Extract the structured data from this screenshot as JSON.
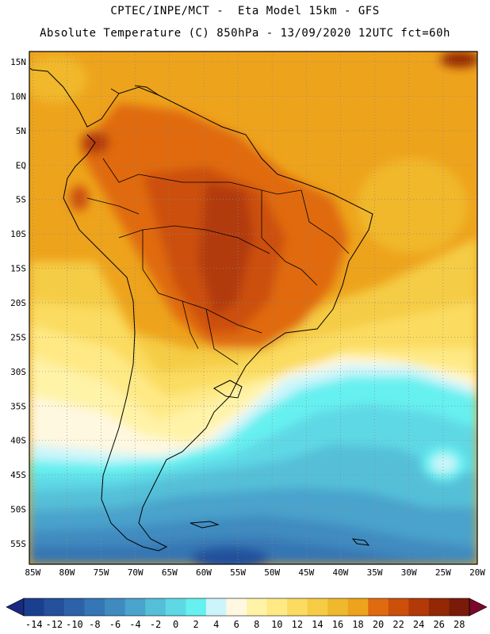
{
  "header": {
    "line1": "CPTEC/INPE/MCT -  Eta Model 15km - GFS",
    "line2": "Absolute Temperature (C) 850hPa - 13/09/2020 12UTC fct=60h"
  },
  "map": {
    "lat_labels": [
      "15N",
      "10N",
      "5N",
      "EQ",
      "5S",
      "10S",
      "15S",
      "20S",
      "25S",
      "30S",
      "35S",
      "40S",
      "45S",
      "50S",
      "55S"
    ],
    "lon_labels": [
      "85W",
      "80W",
      "75W",
      "70W",
      "65W",
      "60W",
      "55W",
      "50W",
      "45W",
      "40W",
      "35W",
      "30W",
      "25W",
      "20W"
    ],
    "lat_values": [
      15,
      10,
      5,
      0,
      -5,
      -10,
      -15,
      -20,
      -25,
      -30,
      -35,
      -40,
      -45,
      -50,
      -55
    ],
    "lon_values": [
      -85,
      -80,
      -75,
      -70,
      -65,
      -60,
      -55,
      -50,
      -45,
      -40,
      -35,
      -30,
      -25,
      -20
    ],
    "lat_range": [
      -58,
      16.5
    ],
    "lon_range": [
      -85.5,
      -20
    ],
    "grid": "dotted"
  },
  "colorbar": {
    "labels": [
      "-14",
      "-12",
      "-10",
      "-8",
      "-6",
      "-4",
      "-2",
      "0",
      "2",
      "4",
      "6",
      "8",
      "10",
      "12",
      "14",
      "16",
      "18",
      "20",
      "22",
      "24",
      "26",
      "28"
    ],
    "colors": [
      "#1b3f8f",
      "#24509c",
      "#2d62a8",
      "#3576b4",
      "#3f8bc0",
      "#4aa3cc",
      "#55bfd8",
      "#5fd8e5",
      "#66f0f0",
      "#ccf5fb",
      "#fff8e0",
      "#fff3a8",
      "#fee985",
      "#fbdc60",
      "#f5cc44",
      "#f0b82c",
      "#eea31c",
      "#e06a10",
      "#cc4f0a",
      "#b23a08",
      "#932805",
      "#7a1a08"
    ],
    "low_color": "#1a2a80",
    "high_color": "#7a0828"
  }
}
